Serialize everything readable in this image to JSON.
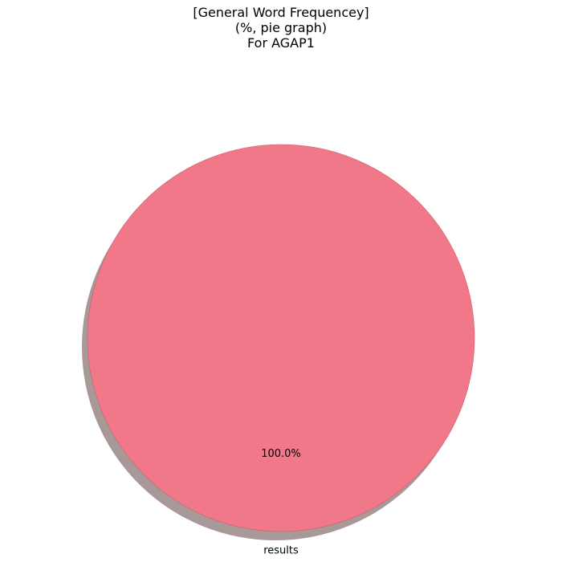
{
  "chart_data": {
    "type": "pie",
    "title_lines": [
      "[General Word Frequencey]",
      "(%, pie graph)",
      "For AGAP1"
    ],
    "slices": [
      {
        "label": "results",
        "value": 100.0,
        "pct_label": "100.0%",
        "color": "#f07888"
      }
    ],
    "shadow": true,
    "shadow_color": "#a89898",
    "edge_color": "#c86070",
    "legend": "none"
  }
}
